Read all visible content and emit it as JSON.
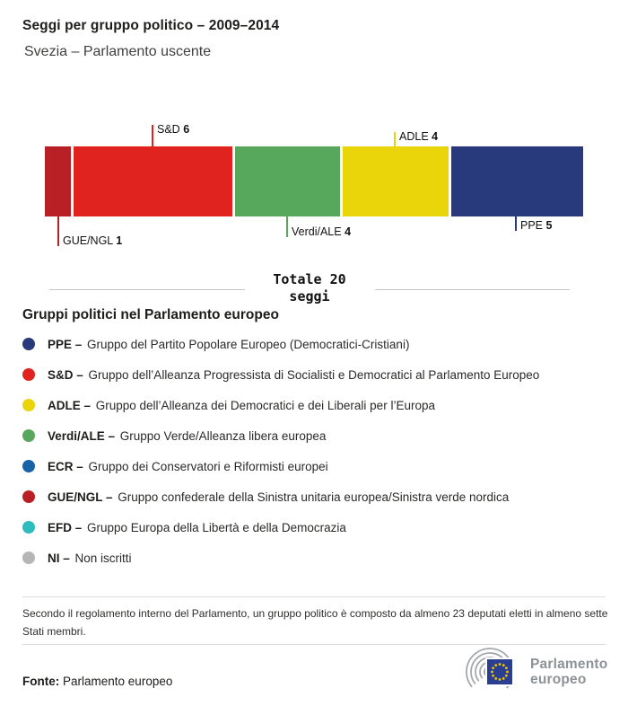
{
  "header": {
    "title": "Seggi per gruppo politico – 2009–2014",
    "subtitle": "Svezia – Parlamento uscente"
  },
  "chart_data": {
    "type": "bar",
    "title": "Seggi per gruppo politico – 2009–2014",
    "subtitle": "Svezia – Parlamento uscente",
    "total": 20,
    "total_label": "Totale 20 seggi",
    "categories": [
      "GUE/NGL",
      "S&D",
      "Verdi/ALE",
      "ADLE",
      "PPE"
    ],
    "values": [
      1,
      6,
      4,
      4,
      5
    ],
    "segments": [
      {
        "group": "GUE/NGL",
        "seats": 1,
        "color": "#b92025",
        "label_position": "below"
      },
      {
        "group": "S&D",
        "seats": 6,
        "color": "#e0231e",
        "label_position": "above"
      },
      {
        "group": "Verdi/ALE",
        "seats": 4,
        "color": "#57a85c",
        "label_position": "below"
      },
      {
        "group": "ADLE",
        "seats": 4,
        "color": "#ead40a",
        "label_position": "above"
      },
      {
        "group": "PPE",
        "seats": 5,
        "color": "#293a7c",
        "label_position": "below"
      }
    ]
  },
  "legend": {
    "heading": "Gruppi politici nel Parlamento europeo",
    "items": [
      {
        "label": "PPE –",
        "name": "Gruppo del Partito Popolare Europeo (Democratici-Cristiani)",
        "color": "#293a7c"
      },
      {
        "label": "S&D –",
        "name": "Gruppo dell’Alleanza Progressista di Socialisti e Democratici al Parlamento Europeo",
        "color": "#e0231e"
      },
      {
        "label": "ADLE –",
        "name": "Gruppo dell’Alleanza dei Democratici e dei Liberali per l’Europa",
        "color": "#ead40a"
      },
      {
        "label": "Verdi/ALE –",
        "name": "Gruppo Verde/Alleanza libera europea",
        "color": "#57a85c"
      },
      {
        "label": "ECR –",
        "name": "Gruppo dei Conservatori e Riformisti europei",
        "color": "#1862a8"
      },
      {
        "label": "GUE/NGL –",
        "name": "Gruppo confederale della Sinistra unitaria europea/Sinistra verde nordica",
        "color": "#b92025"
      },
      {
        "label": "EFD –",
        "name": "Gruppo Europa della Libertà e della Democrazia",
        "color": "#2fbcbd"
      },
      {
        "label": "NI –",
        "name": "Non iscritti",
        "color": "#b5b5b5"
      }
    ]
  },
  "footnote": "Secondo il regolamento interno del Parlamento, un gruppo politico è composto da almeno 23 deputati eletti in almeno sette Stati membri.",
  "source": {
    "label": "Fonte:",
    "value": "Parlamento europeo"
  },
  "logo": {
    "line1": "Parlamento",
    "line2": "europeo"
  },
  "colors": {
    "flag_blue": "#2a3f8f",
    "star_yellow": "#f3c500",
    "logo_gray": "#a4a9ae"
  }
}
